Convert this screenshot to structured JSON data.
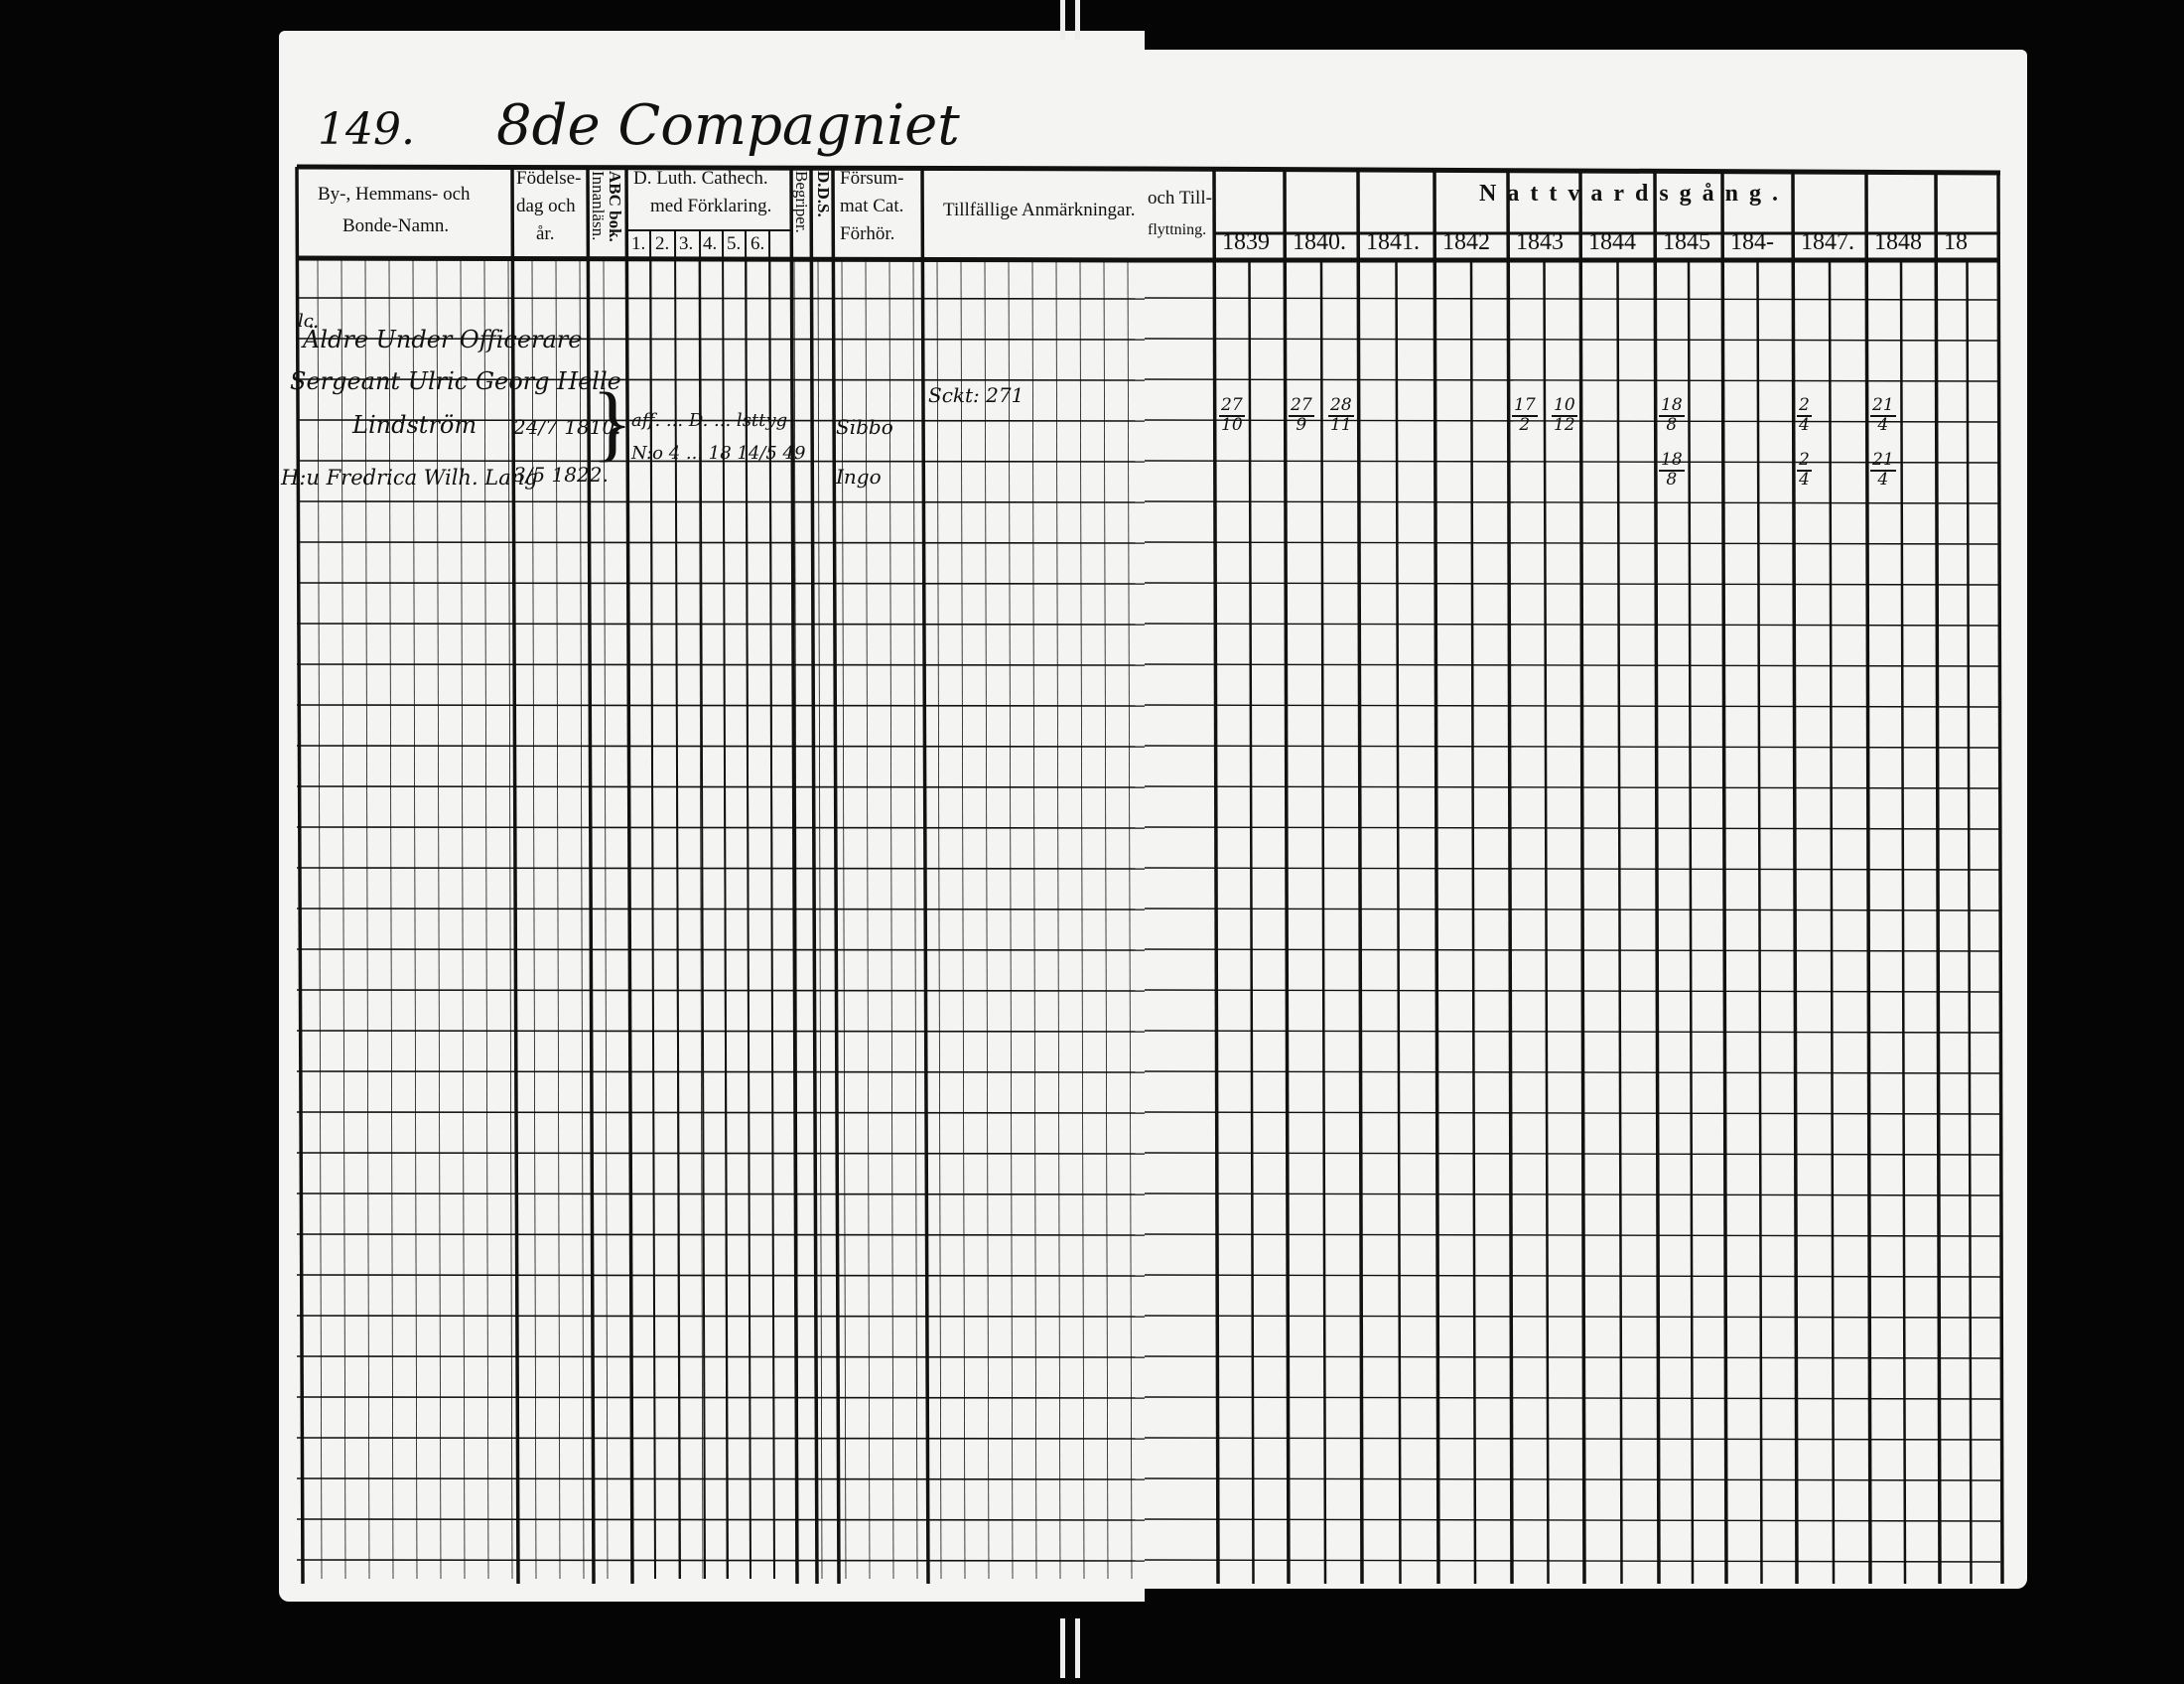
{
  "page_header": {
    "page_number": "149.",
    "company_title": "8de Compagniet"
  },
  "left_columns": {
    "name": "By-, Hemmans- och Bonde-Namn.",
    "name_line1": "By-, Hemmans- och",
    "name_line2": "Bonde-Namn.",
    "birth_line1": "Födelse-",
    "birth_line2": "dag och",
    "birth_line3": "år.",
    "abc": "ABC bok.",
    "innanlasn": "Innanläsn.",
    "catech_line1": "D. Luth. Cathech.",
    "catech_line2": "med Förklaring.",
    "catech_subs": [
      "1.",
      "2.",
      "3.",
      "4.",
      "5.",
      "6."
    ],
    "begriper": "Begriper.",
    "dds": "D.D.S.",
    "forsummat_line1": "Försum-",
    "forsummat_line2": "mat Cat.",
    "forsummat_line3": "Förhör.",
    "remarks": "Tillfällige Anmärkningar."
  },
  "right_columns": {
    "moving_line1": "och Till-",
    "moving_line2": "flyttning.",
    "communion": "Nattvardsgång.",
    "years": [
      "1839",
      "1840.",
      "1841.",
      "1842",
      "1843",
      "1844",
      "1845",
      "184-",
      "1847.",
      "1848",
      "18"
    ]
  },
  "entries": [
    {
      "title": "Äldre Under Officerare"
    },
    {
      "name": "Sergeant Ulric Georg Helle",
      "name_cont": "Lindström",
      "birth": "24/7 1810.",
      "catechism": "aff. ... D. ... lsttyg",
      "catechism2": "N:o 4 ... 18 14/5 49",
      "understanding": "Sibbo",
      "remark": "Sckt: 271"
    },
    {
      "name": "H:u Fredrica Wilh. Lang",
      "birth": "3/5 1822.",
      "understanding": "Ingo"
    }
  ],
  "communion_dates": [
    {
      "year": "1839",
      "row": 1,
      "day": "27",
      "month": "10"
    },
    {
      "year": "1840",
      "row": 1,
      "day": "27",
      "month": "9"
    },
    {
      "year": "1840",
      "row": 1,
      "day": "28",
      "month": "11"
    },
    {
      "year": "1843",
      "row": 1,
      "day": "17",
      "month": "2"
    },
    {
      "year": "1843",
      "row": 1,
      "day": "10",
      "month": "12"
    },
    {
      "year": "1845",
      "row": 1,
      "day": "18",
      "month": "8"
    },
    {
      "year": "1845",
      "row": 2,
      "day": "18",
      "month": "8"
    },
    {
      "year": "1847",
      "row": 1,
      "day": "2",
      "month": "4"
    },
    {
      "year": "1847",
      "row": 2,
      "day": "2",
      "month": "4"
    },
    {
      "year": "1848",
      "row": 1,
      "day": "21",
      "month": "4"
    },
    {
      "year": "1848",
      "row": 2,
      "day": "21",
      "month": "4"
    }
  ]
}
